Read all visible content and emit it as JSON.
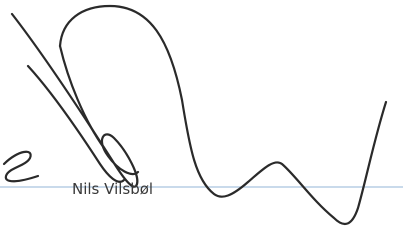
{
  "signature": {
    "name": "Nils Vilsbøl"
  }
}
